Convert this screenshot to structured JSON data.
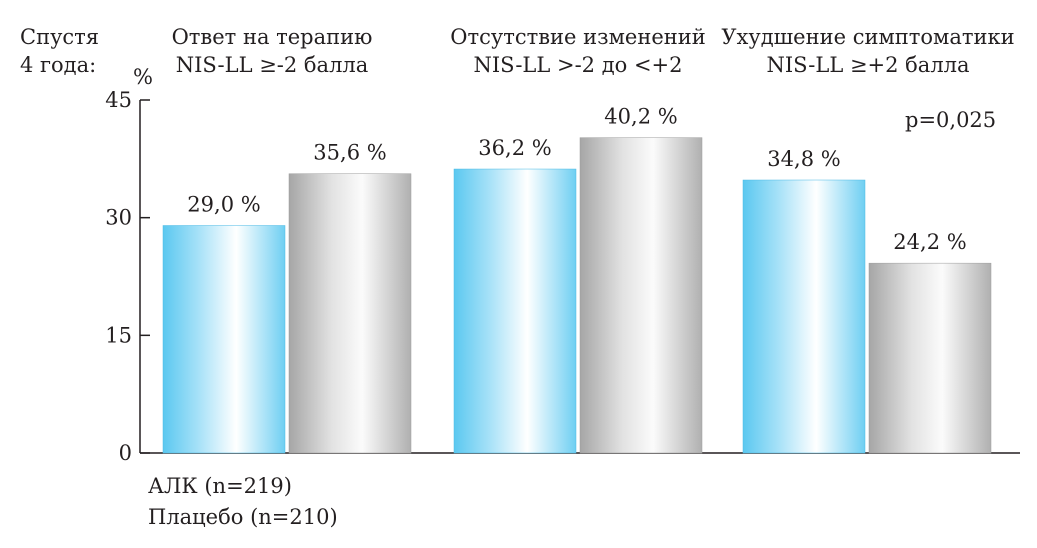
{
  "chart_data": {
    "type": "bar",
    "corner_label": [
      "Спустя",
      "4 года:"
    ],
    "ylabel": "%",
    "ylim": [
      0,
      45
    ],
    "yticks": [
      0,
      15,
      30,
      45
    ],
    "grid": false,
    "categories": [
      {
        "line1": "Ответ на терапию",
        "line2": "NIS-LL ≥-2 балла"
      },
      {
        "line1": "Отсутствие изменений",
        "line2": "NIS-LL >-2 до <+2"
      },
      {
        "line1": "Ухудшение симптоматики",
        "line2": "NIS-LL ≥+2 балла"
      }
    ],
    "series": [
      {
        "name": "АЛК (n=219)",
        "values": [
          29.0,
          36.2,
          34.8
        ],
        "labels": [
          "29,0 %",
          "36,2 %",
          "34,8 %"
        ],
        "color": "#5bc8f0"
      },
      {
        "name": "Плацебо (n=210)",
        "values": [
          35.6,
          40.2,
          24.2
        ],
        "labels": [
          "35,6 %",
          "40,2 %",
          "24,2 %"
        ],
        "color": "#b3b3b3"
      }
    ],
    "annotation": "p=0,025",
    "legend_placement": "bottom-left"
  }
}
